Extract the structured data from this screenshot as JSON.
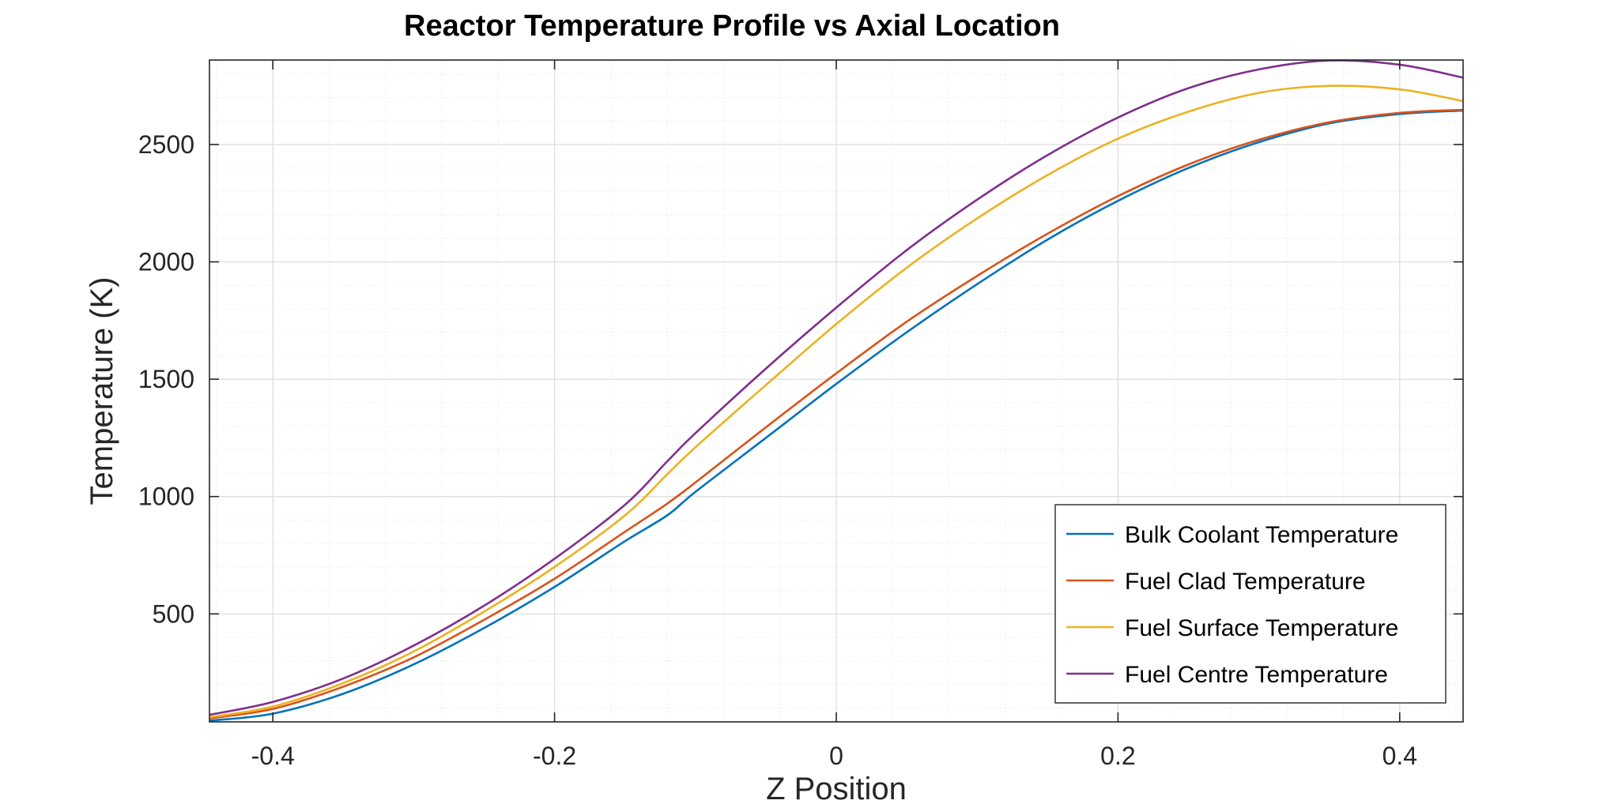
{
  "chart_data": {
    "type": "line",
    "title": "Reactor Temperature Profile vs Axial Location",
    "xlabel": "Z Position",
    "ylabel": "Temperature (K)",
    "xlim": [
      -0.445,
      0.445
    ],
    "ylim": [
      40,
      2860
    ],
    "xticks": [
      -0.4,
      -0.2,
      0,
      0.2,
      0.4
    ],
    "xtick_labels": [
      "-0.4",
      "-0.2",
      "0",
      "0.2",
      "0.4"
    ],
    "yticks": [
      500,
      1000,
      1500,
      2000,
      2500
    ],
    "ytick_labels": [
      "500",
      "1000",
      "1500",
      "2000",
      "2500"
    ],
    "grid": true,
    "minor_grid": true,
    "legend_position": "bottom-right",
    "x": [
      -0.445,
      -0.4,
      -0.35,
      -0.3,
      -0.25,
      -0.2,
      -0.15,
      -0.12,
      -0.1,
      -0.05,
      0,
      0.05,
      0.1,
      0.15,
      0.2,
      0.25,
      0.3,
      0.35,
      0.4,
      0.445
    ],
    "series": [
      {
        "name": "Bulk Coolant Temperature",
        "color": "#0072BD",
        "values": [
          45,
          75,
          160,
          285,
          440,
          615,
          810,
          920,
          1020,
          1250,
          1480,
          1700,
          1905,
          2095,
          2260,
          2400,
          2510,
          2590,
          2630,
          2645
        ]
      },
      {
        "name": "Fuel Clad Temperature",
        "color": "#D95319",
        "values": [
          55,
          95,
          190,
          315,
          475,
          650,
          850,
          970,
          1060,
          1295,
          1525,
          1745,
          1940,
          2120,
          2280,
          2415,
          2520,
          2595,
          2635,
          2648
        ]
      },
      {
        "name": "Fuel Surface Temperature",
        "color": "#EDB120",
        "values": [
          60,
          105,
          205,
          340,
          510,
          700,
          920,
          1095,
          1210,
          1475,
          1735,
          1975,
          2185,
          2370,
          2525,
          2640,
          2720,
          2750,
          2735,
          2685
        ]
      },
      {
        "name": "Fuel Centre Temperature",
        "color": "#7E2F8E",
        "values": [
          70,
          125,
          225,
          365,
          535,
          735,
          965,
          1150,
          1270,
          1545,
          1805,
          2050,
          2265,
          2455,
          2615,
          2740,
          2820,
          2858,
          2840,
          2785
        ]
      }
    ]
  }
}
